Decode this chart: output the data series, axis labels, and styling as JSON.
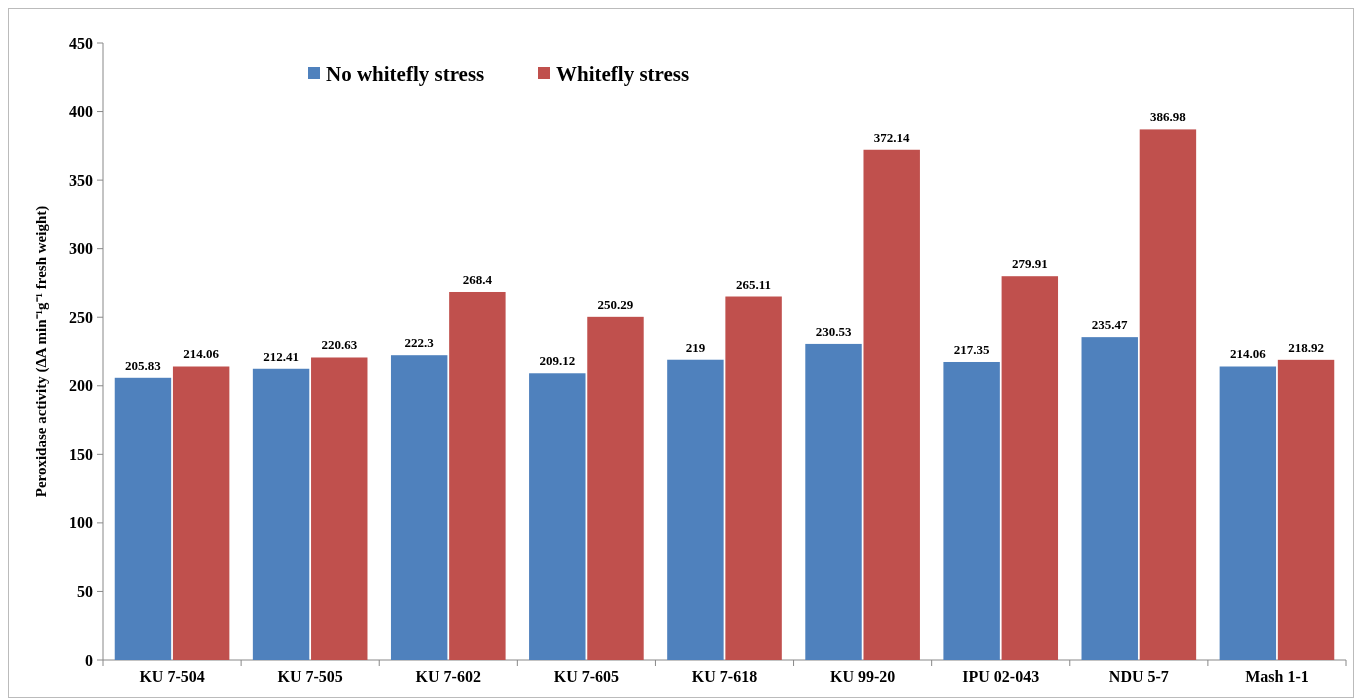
{
  "chart_data": {
    "type": "bar",
    "ylabel": "Peroxidase activity (ΔA min⁻¹g⁻¹ fresh weight)",
    "categories": [
      "KU 7-504",
      "KU 7-505",
      "KU 7-602",
      "KU 7-605",
      "KU 7-618",
      "KU 99-20",
      "IPU 02-043",
      "NDU 5-7",
      "Mash 1-1"
    ],
    "series": [
      {
        "name": "No whitefly stress",
        "color": "#4f81bd",
        "values": [
          205.83,
          212.41,
          222.3,
          209.12,
          219,
          230.53,
          217.35,
          235.47,
          214.06
        ]
      },
      {
        "name": "Whitefly stress",
        "color": "#c0504d",
        "values": [
          214.06,
          220.63,
          268.4,
          250.29,
          265.11,
          372.14,
          279.91,
          386.98,
          218.92
        ]
      }
    ],
    "ylim": [
      0,
      450
    ],
    "yticks": [
      0,
      50,
      100,
      150,
      200,
      250,
      300,
      350,
      400,
      450
    ],
    "data_labels": true,
    "legend": "top left",
    "grid": false
  }
}
